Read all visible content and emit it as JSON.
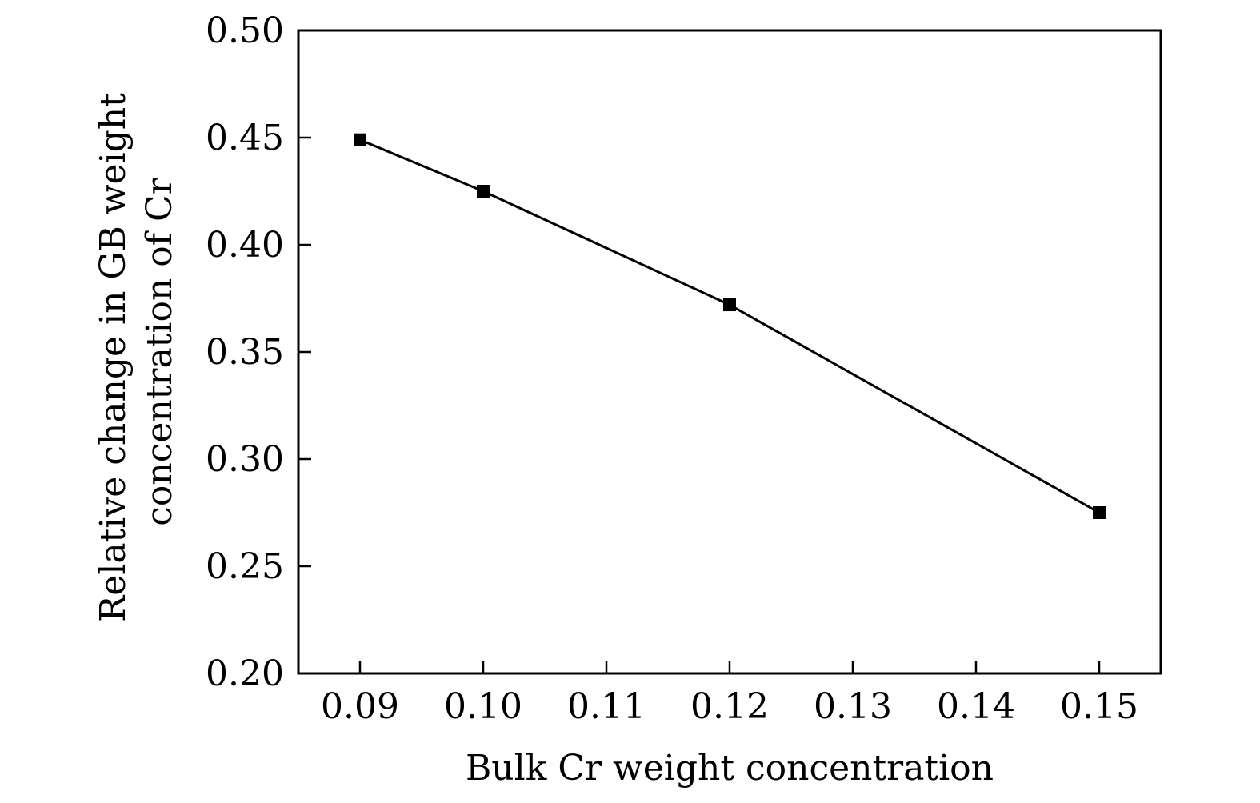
{
  "chart_data": {
    "type": "line",
    "xlabel": "Bulk Cr weight concentration",
    "ylabel": [
      "Relative change in GB weight",
      "concentration of Cr"
    ],
    "xlim": [
      0.085,
      0.155
    ],
    "ylim": [
      0.2,
      0.5
    ],
    "xticks": [
      "0.09",
      "0.10",
      "0.11",
      "0.12",
      "0.13",
      "0.14",
      "0.15"
    ],
    "yticks": [
      "0.20",
      "0.25",
      "0.30",
      "0.35",
      "0.40",
      "0.45",
      "0.50"
    ],
    "grid": false,
    "marker": "square",
    "series": [
      {
        "x": [
          0.09,
          0.1,
          0.12,
          0.15
        ],
        "y": [
          0.449,
          0.425,
          0.372,
          0.275
        ]
      }
    ],
    "colors": {
      "line": "#000000",
      "marker": "#000000",
      "axes": "#000000"
    }
  }
}
